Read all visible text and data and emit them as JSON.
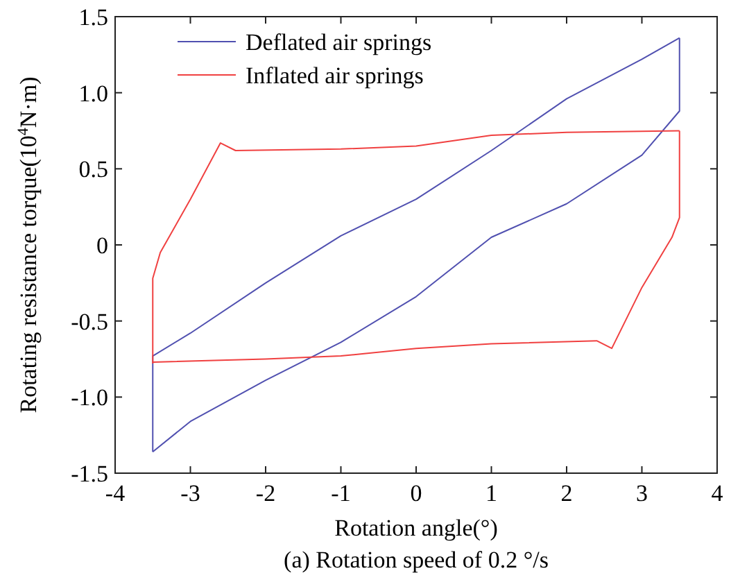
{
  "chart_data": {
    "type": "line",
    "title": "(a) Rotation speed of 0.2 °/s",
    "xlabel": "Rotation angle(°)",
    "ylabel": "Rotating resistance torque(10$^{4}$N·m)",
    "xlim": [
      -4,
      4
    ],
    "xticks": [
      -4,
      -3,
      -2,
      -1,
      0,
      1,
      2,
      3,
      4
    ],
    "ylim": [
      -1.5,
      1.5
    ],
    "yticks": [
      {
        "value": -1.5,
        "label": "-1.5"
      },
      {
        "value": -1,
        "label": "-1.0"
      },
      {
        "value": -0.5,
        "label": "-0.5"
      },
      0,
      {
        "value": 0.5,
        "label": "0.5"
      },
      {
        "value": 1,
        "label": "1.0"
      },
      {
        "value": 1.5,
        "label": "1.5"
      }
    ],
    "legend": "top left",
    "grid": false,
    "marker": "none",
    "line_style": "solid",
    "series": [
      {
        "name": "Deflated air springs",
        "color": "#5050b0",
        "x": [
          -3.5,
          -3.5,
          -3,
          -2,
          -1,
          0,
          1,
          2,
          3,
          3.5
        ],
        "values": [
          -1.36,
          -0.73,
          -0.58,
          -0.25,
          0.06,
          0.3,
          0.62,
          0.96,
          1.22,
          1.36
        ]
      },
      {
        "color": "#5050b0",
        "x": [
          -3.5,
          -3,
          -2,
          -1,
          0,
          1,
          2,
          3,
          3.5,
          3.5
        ],
        "values": [
          -1.36,
          -1.16,
          -0.89,
          -0.64,
          -0.34,
          0.05,
          0.27,
          0.59,
          0.88,
          1.36
        ]
      },
      {
        "name": "Inflated air springs",
        "color": "#f04040",
        "x": [
          -3.5,
          -3.5,
          -3.4,
          -3,
          -2.6,
          -2.4,
          -1,
          0,
          1,
          2,
          3.5
        ],
        "values": [
          -0.78,
          -0.22,
          -0.05,
          0.3,
          0.67,
          0.62,
          0.63,
          0.65,
          0.72,
          0.74,
          0.75
        ]
      },
      {
        "color": "#f04040",
        "x": [
          -3.5,
          -2,
          -1,
          0,
          1,
          2.4,
          2.6,
          3,
          3.4,
          3.5,
          3.5
        ],
        "values": [
          -0.77,
          -0.75,
          -0.73,
          -0.68,
          -0.65,
          -0.63,
          -0.68,
          -0.28,
          0.05,
          0.18,
          0.75
        ]
      }
    ]
  }
}
